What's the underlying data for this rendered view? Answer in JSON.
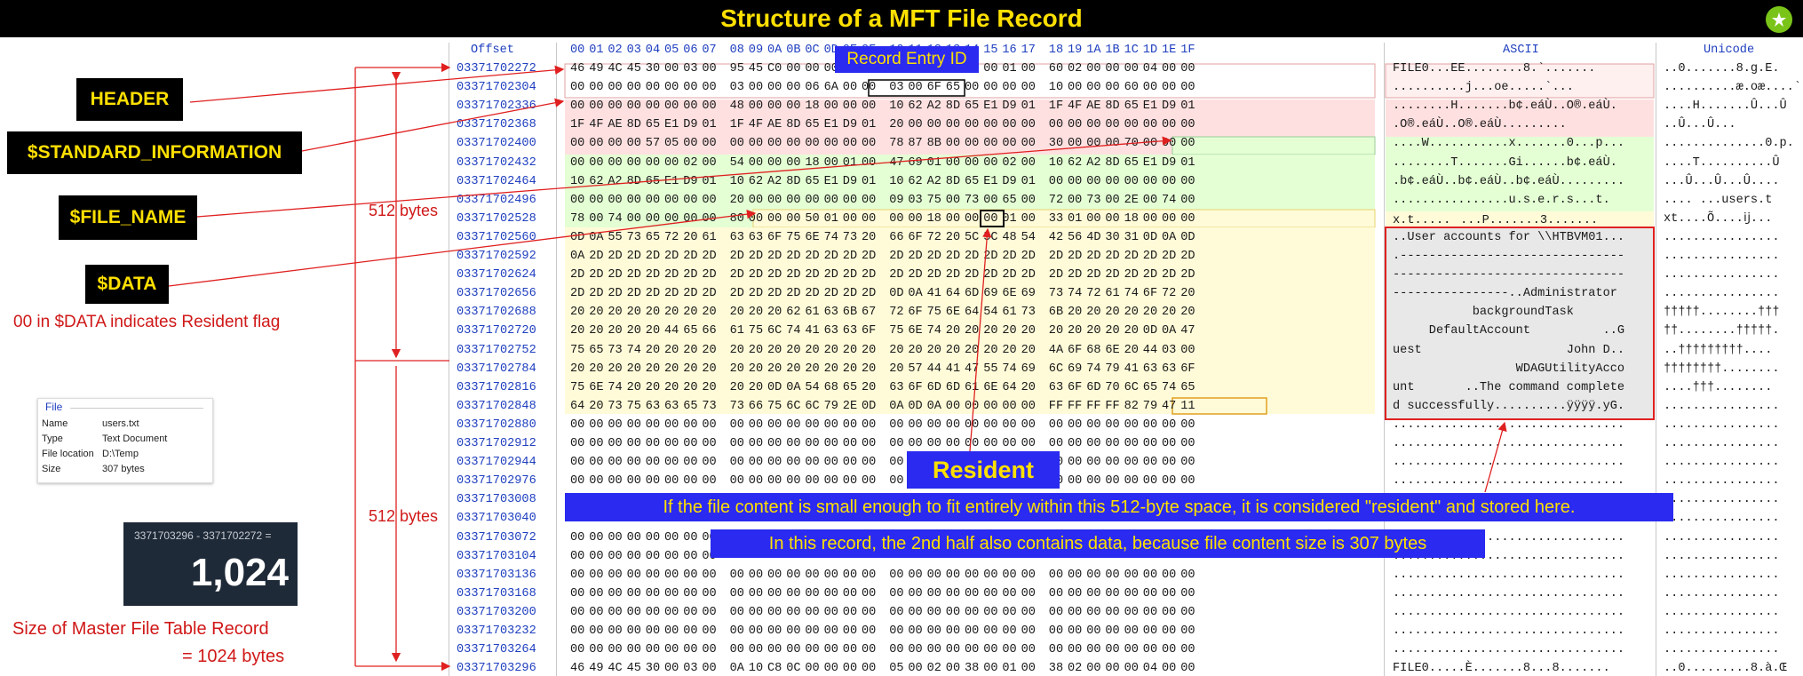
{
  "title": "Structure of a MFT File Record",
  "headers": {
    "offset": "Offset",
    "cols": [
      "00",
      "01",
      "02",
      "03",
      "04",
      "05",
      "06",
      "07",
      "08",
      "09",
      "0A",
      "0B",
      "0C",
      "0D",
      "0E",
      "0F",
      "10",
      "11",
      "12",
      "13",
      "14",
      "15",
      "16",
      "17",
      "18",
      "19",
      "1A",
      "1B",
      "1C",
      "1D",
      "1E",
      "1F"
    ],
    "ascii": "ASCII",
    "unicode": "Unicode"
  },
  "labels": {
    "header": "HEADER",
    "standard_information": "$STANDARD_INFORMATION",
    "file_name": "$FILE_NAME",
    "data": "$DATA",
    "resident_flag_note": "00 in $DATA indicates Resident flag",
    "bytes_top": "512 bytes",
    "bytes_bottom": "512 bytes",
    "record_entry_id": "Record Entry ID",
    "resident": "Resident",
    "banner1": "If the file content is small enough to fit entirely within this 512-byte space, it is considered \"resident\" and stored here.",
    "banner2": "In this record, the 2nd half also contains data, because file content size is 307 bytes",
    "size_note_1": "Size of Master File Table Record",
    "size_note_2": "= 1024 bytes"
  },
  "file_panel": {
    "title": "File",
    "rows": [
      {
        "k": "Name",
        "v": "users.txt"
      },
      {
        "k": "Type",
        "v": "Text Document"
      },
      {
        "k": "File location",
        "v": "D:\\Temp"
      },
      {
        "k": "Size",
        "v": "307 bytes"
      }
    ]
  },
  "calculator": {
    "expression": "3371703296 - 3371702272 =",
    "result": "1,024"
  },
  "rows": [
    {
      "off": "03371702272",
      "hex": "46 49 4C 45 30 00 03 00 95 45 C0 00 00 00 00 00 01 00 01 00 38 00 01 00 60 02 00 00 00 04 00 00",
      "ascii": "FILE0...EE........8.`.......",
      "uni": "..0.......8.g.E."
    },
    {
      "off": "03371702304",
      "hex": "00 00 00 00 00 00 00 00 03 00 00 00 06 6A 00 00 03 00 6F 65 00 00 00 00 10 00 00 00 60 00 00 00",
      "ascii": "..........j...oe.....`...",
      "uni": "..........æ.oæ....`"
    },
    {
      "off": "03371702336",
      "hex": "00 00 00 00 00 00 00 00 48 00 00 00 18 00 00 00 10 62 A2 8D 65 E1 D9 01 1F 4F AE 8D 65 E1 D9 01",
      "ascii": "........H.......b¢.eáÙ..O®.eáÙ.",
      "uni": "....H.......Û...Û"
    },
    {
      "off": "03371702368",
      "hex": "1F 4F AE 8D 65 E1 D9 01 1F 4F AE 8D 65 E1 D9 01 20 00 00 00 00 00 00 00 00 00 00 00 00 00 00 00",
      "ascii": ".O®.eáÙ..O®.eáÙ.........",
      "uni": "..Û...Û..."
    },
    {
      "off": "03371702400",
      "hex": "00 00 00 00 57 05 00 00 00 00 00 00 00 00 00 00 78 87 8B 00 00 00 00 00 30 00 00 00 70 00 00 00",
      "ascii": "....W...........x.......0...p...",
      "uni": "..............0.p."
    },
    {
      "off": "03371702432",
      "hex": "00 00 00 00 00 00 02 00 54 00 00 00 18 00 01 00 47 69 01 00 00 00 02 00 10 62 A2 8D 65 E1 D9 01",
      "ascii": "........T.......Gi......b¢.eáÙ.",
      "uni": "....T..........Û"
    },
    {
      "off": "03371702464",
      "hex": "10 62 A2 8D 65 E1 D9 01 10 62 A2 8D 65 E1 D9 01 10 62 A2 8D 65 E1 D9 01 00 00 00 00 00 00 00 00",
      "ascii": ".b¢.eáÙ..b¢.eáÙ..b¢.eáÙ.........",
      "uni": "...Û...Û...Û...."
    },
    {
      "off": "03371702496",
      "hex": "00 00 00 00 00 00 00 00 20 00 00 00 00 00 00 00 09 03 75 00 73 00 65 00 72 00 73 00 2E 00 74 00",
      "ascii": "................u.s.e.r.s...t.",
      "uni": ".... ...users.t"
    },
    {
      "off": "03371702528",
      "hex": "78 00 74 00 00 00 00 00 80 00 00 00 50 01 00 00 00 00 18 00 00 00 01 00 33 01 00 00 18 00 00 00",
      "ascii": "x.t........P.......3.......",
      "uni": "xt....Õ....ĳ..."
    },
    {
      "off": "03371702560",
      "hex": "0D 0A 55 73 65 72 20 61 63 63 6F 75 6E 74 73 20 66 6F 72 20 5C 5C 48 54 42 56 4D 30 31 0D 0A 0D",
      "ascii": "..User accounts for \\\\HTBVM01...",
      "uni": "................"
    },
    {
      "off": "03371702592",
      "hex": "0A 2D 2D 2D 2D 2D 2D 2D 2D 2D 2D 2D 2D 2D 2D 2D 2D 2D 2D 2D 2D 2D 2D 2D 2D 2D 2D 2D 2D 2D 2D 2D",
      "ascii": ".-------------------------------",
      "uni": "................"
    },
    {
      "off": "03371702624",
      "hex": "2D 2D 2D 2D 2D 2D 2D 2D 2D 2D 2D 2D 2D 2D 2D 2D 2D 2D 2D 2D 2D 2D 2D 2D 2D 2D 2D 2D 2D 2D 2D 2D",
      "ascii": "--------------------------------",
      "uni": "................"
    },
    {
      "off": "03371702656",
      "hex": "2D 2D 2D 2D 2D 2D 2D 2D 2D 2D 2D 2D 2D 2D 2D 2D 0D 0A 41 64 6D 69 6E 69 73 74 72 61 74 6F 72 20",
      "ascii": "----------------..Administrator ",
      "uni": "................"
    },
    {
      "off": "03371702688",
      "hex": "20 20 20 20 20 20 20 20 20 20 20 62 61 63 6B 67 72 6F 75 6E 64 54 61 73 6B 20 20 20 20 20 20 20",
      "ascii": "           backgroundTask       ",
      "uni": "†††††........†††"
    },
    {
      "off": "03371702720",
      "hex": "20 20 20 20 20 44 65 66 61 75 6C 74 41 63 63 6F 75 6E 74 20 20 20 20 20 20 20 20 20 20 0D 0A 47",
      "ascii": "     DefaultAccount          ..G",
      "uni": "††........†††††."
    },
    {
      "off": "03371702752",
      "hex": "75 65 73 74 20 20 20 20 20 20 20 20 20 20 20 20 20 20 20 20 20 20 20 20 4A 6F 68 6E 20 44 03 00",
      "ascii": "uest                    John D..",
      "uni": "..†††††††††...."
    },
    {
      "off": "03371702784",
      "hex": "20 20 20 20 20 20 20 20 20 20 20 20 20 20 20 20 20 57 44 41 47 55 74 69 6C 69 74 79 41 63 63 6F",
      "ascii": "                 WDAGUtilityAcco",
      "uni": "††††††††........"
    },
    {
      "off": "03371702816",
      "hex": "75 6E 74 20 20 20 20 20 20 20 0D 0A 54 68 65 20 63 6F 6D 6D 61 6E 64 20 63 6F 6D 70 6C 65 74 65",
      "ascii": "unt       ..The command complete",
      "uni": "....†††........"
    },
    {
      "off": "03371702848",
      "hex": "64 20 73 75 63 63 65 73 73 66 75 6C 6C 79 2E 0D 0A 0D 0A 00 00 00 00 00 FF FF FF FF 82 79 47 11",
      "ascii": "d successfully..........ÿÿÿÿ.yG.",
      "uni": "................"
    },
    {
      "off": "03371702880",
      "hex": "00 00 00 00 00 00 00 00 00 00 00 00 00 00 00 00 00 00 00 00 00 00 00 00 00 00 00 00 00 00 00 00",
      "ascii": "................................",
      "uni": "................"
    },
    {
      "off": "03371702912",
      "hex": "00 00 00 00 00 00 00 00 00 00 00 00 00 00 00 00 00 00 00 00 00 00 00 00 00 00 00 00 00 00 00 00",
      "ascii": "................................",
      "uni": "................"
    },
    {
      "off": "03371702944",
      "hex": "00 00 00 00 00 00 00 00 00 00 00 00 00 00 00 00 00 00 00 00 00 00 00 00 00 00 00 00 00 00 00 00",
      "ascii": "................................",
      "uni": "................"
    },
    {
      "off": "03371702976",
      "hex": "00 00 00 00 00 00 00 00 00 00 00 00 00 00 00 00 00 00 00 00 00 00 00 00 00 00 00 00 00 00 00 00",
      "ascii": "................................",
      "uni": "................"
    },
    {
      "off": "03371703008",
      "hex": "",
      "ascii": "................................",
      "uni": "................"
    },
    {
      "off": "03371703040",
      "hex": "",
      "ascii": "................................",
      "uni": "................"
    },
    {
      "off": "03371703072",
      "hex": "00 00 00 00 00 00 00 00",
      "ascii": "................................",
      "uni": "................"
    },
    {
      "off": "03371703104",
      "hex": "00 00 00 00 00 00 00 00",
      "ascii": "................................",
      "uni": "................"
    },
    {
      "off": "03371703136",
      "hex": "00 00 00 00 00 00 00 00 00 00 00 00 00 00 00 00 00 00 00 00 00 00 00 00 00 00 00 00 00 00 00 00",
      "ascii": "................................",
      "uni": "................"
    },
    {
      "off": "03371703168",
      "hex": "00 00 00 00 00 00 00 00 00 00 00 00 00 00 00 00 00 00 00 00 00 00 00 00 00 00 00 00 00 00 00 00",
      "ascii": "................................",
      "uni": "................"
    },
    {
      "off": "03371703200",
      "hex": "00 00 00 00 00 00 00 00 00 00 00 00 00 00 00 00 00 00 00 00 00 00 00 00 00 00 00 00 00 00 00 00",
      "ascii": "................................",
      "uni": "................"
    },
    {
      "off": "03371703232",
      "hex": "00 00 00 00 00 00 00 00 00 00 00 00 00 00 00 00 00 00 00 00 00 00 00 00 00 00 00 00 00 00 00 00",
      "ascii": "................................",
      "uni": "................"
    },
    {
      "off": "03371703264",
      "hex": "00 00 00 00 00 00 00 00 00 00 00 00 00 00 00 00 00 00 00 00 00 00 00 00 00 00 00 00 00 00 00 00",
      "ascii": "................................",
      "uni": "................"
    },
    {
      "off": "03371703296",
      "hex": "46 49 4C 45 30 00 03 00 0A 10 C8 0C 00 00 00 00 05 00 02 00 38 00 01 00 38 02 00 00 00 04 00 00",
      "ascii": "FILE0.....È.......8...8.......",
      "uni": "..0.........8.à.Œ"
    }
  ],
  "colors": {
    "title": "#ffe000",
    "header_bg": "#ff0000",
    "std_info_bg": "#ffe8e8",
    "file_name_bg": "#e8ffd8",
    "data_bg": "#fffbd8",
    "hex_blue": "#1f3fbf",
    "arrow_red": "#e02020",
    "banner_blue": "#2a2af0"
  }
}
